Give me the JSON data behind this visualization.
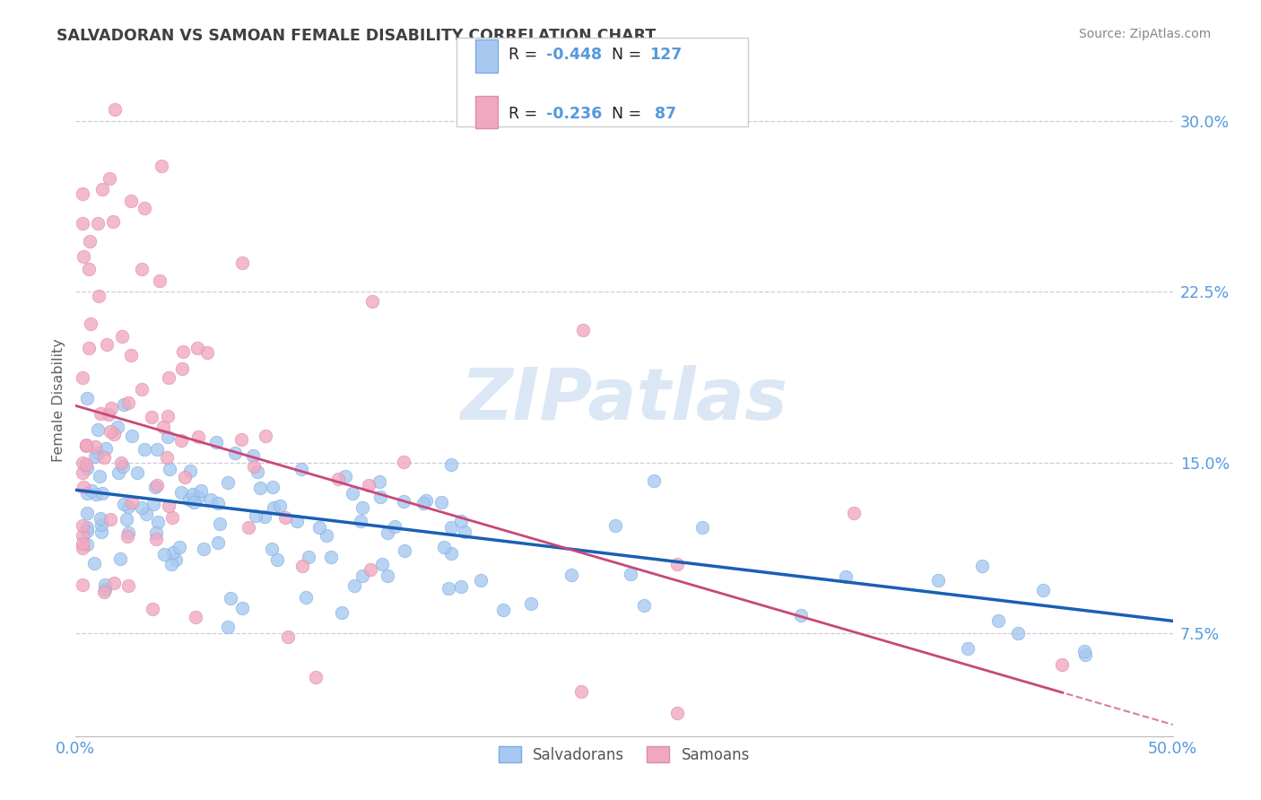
{
  "title": "SALVADORAN VS SAMOAN FEMALE DISABILITY CORRELATION CHART",
  "source": "Source: ZipAtlas.com",
  "ylabel": "Female Disability",
  "ytick_values": [
    0.075,
    0.15,
    0.225,
    0.3
  ],
  "xlim": [
    0.0,
    0.5
  ],
  "ylim": [
    0.03,
    0.325
  ],
  "watermark": "ZIPatlas",
  "label_salvadorans": "Salvadorans",
  "label_samoans": "Samoans",
  "color_salvadoran": "#a8c8f0",
  "color_samoan": "#f0a8c0",
  "color_trendline_salv": "#1a5fb4",
  "color_trendline_samo": "#c84878",
  "background_color": "#ffffff",
  "grid_color": "#ccccdd",
  "title_color": "#404040",
  "axis_label_color": "#5599dd",
  "salv_intercept": 0.138,
  "salv_slope": -0.115,
  "samo_intercept": 0.175,
  "samo_slope": -0.28
}
